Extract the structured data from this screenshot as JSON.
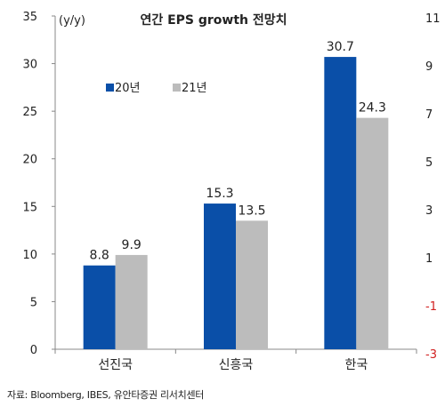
{
  "chart_data": {
    "type": "bar",
    "title": "연간 EPS growth 전망치",
    "unit_label": "(y/y)",
    "categories": [
      "선진국",
      "신흥국",
      "한국"
    ],
    "series": [
      {
        "name": "20년",
        "values": [
          8.8,
          15.3,
          30.7
        ],
        "color": "#0a4fa8"
      },
      {
        "name": "21년",
        "values": [
          9.9,
          13.5,
          24.3
        ],
        "color": "#bcbcbc"
      }
    ],
    "ylim": [
      0,
      35
    ],
    "yticks": [
      "0",
      "5",
      "10",
      "15",
      "20",
      "25",
      "30",
      "35"
    ],
    "data_labels": [
      [
        "8.8",
        "15.3",
        "30.7"
      ],
      [
        "9.9",
        "13.5",
        "24.3"
      ]
    ],
    "legend_position": "top-left",
    "grid": false
  },
  "right_axis_partial": {
    "tick_labels": [
      "11",
      "9",
      "7",
      "5",
      "3",
      "1",
      "-1",
      "-3"
    ],
    "negative_color": "#d11f1f"
  },
  "source_text": "자료: Bloomberg, IBES, 유안타증권 리서치센터"
}
